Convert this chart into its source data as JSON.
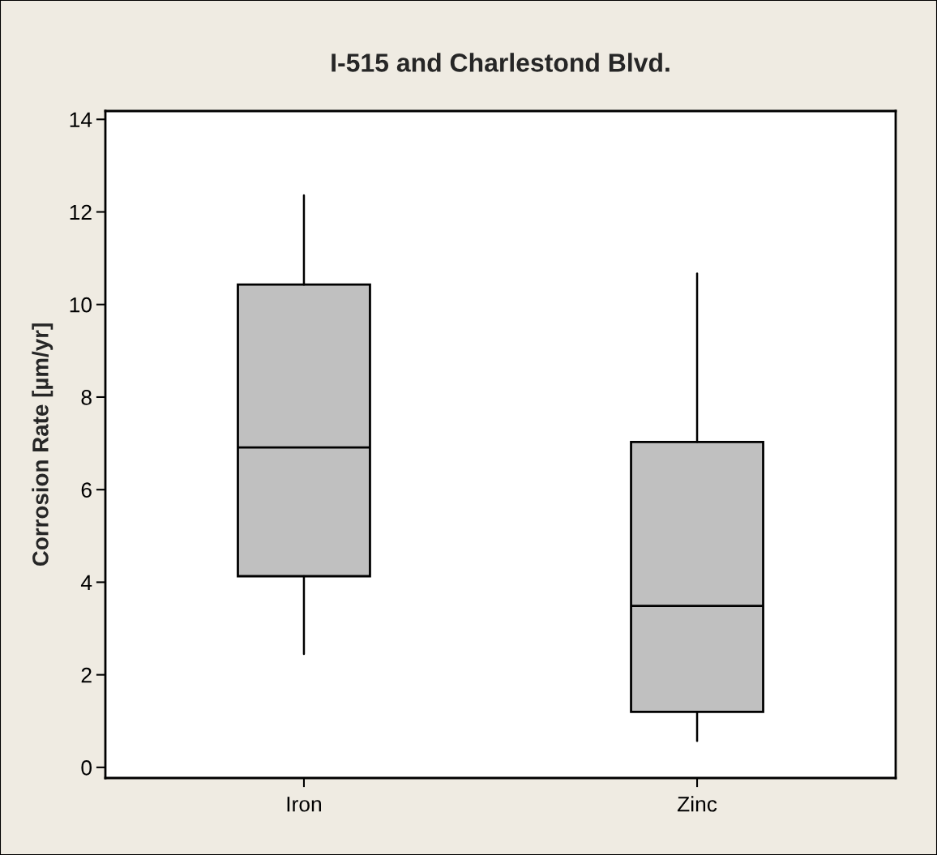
{
  "chart_data": {
    "type": "box",
    "title": "I-515 and Charlestond Blvd.",
    "ylabel": "Corrosion Rate [µm/yr]",
    "categories": [
      "Iron",
      "Zinc"
    ],
    "color": "#c0c0c0",
    "boxes": [
      {
        "low": 2.45,
        "q1": 4.13,
        "median": 6.91,
        "q3": 10.43,
        "high": 12.36
      },
      {
        "low": 0.57,
        "q1": 1.2,
        "median": 3.49,
        "q3": 7.03,
        "high": 10.67
      }
    ],
    "ylim": [
      -0.23,
      14.18
    ],
    "yticks": [
      0,
      2,
      4,
      6,
      8,
      10,
      12,
      14
    ],
    "grid": false,
    "legend": false
  }
}
